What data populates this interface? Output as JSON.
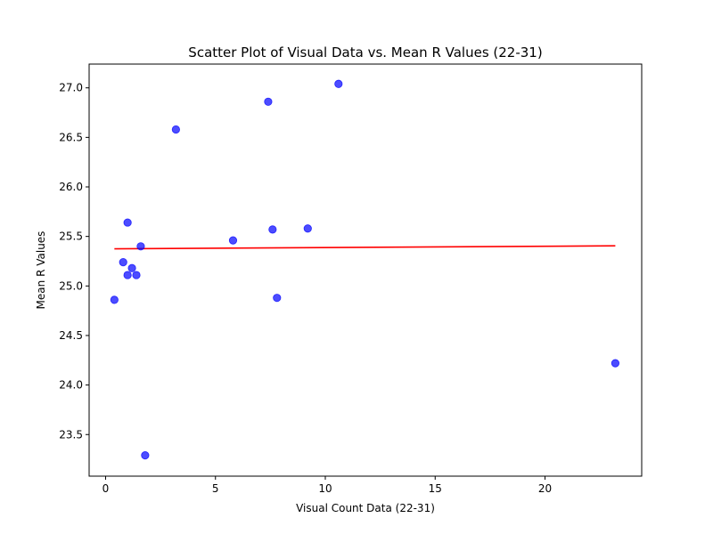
{
  "chart_data": {
    "type": "scatter",
    "title": "Scatter Plot of Visual Data vs. Mean R Values (22-31)",
    "xlabel": "Visual Count Data (22-31)",
    "ylabel": "Mean R Values",
    "xlim": [
      -0.75,
      24.4
    ],
    "ylim": [
      23.08,
      27.24
    ],
    "xticks": [
      0,
      5,
      10,
      15,
      20
    ],
    "xtick_labels": [
      "0",
      "5",
      "10",
      "15",
      "20"
    ],
    "yticks": [
      23.5,
      24.0,
      24.5,
      25.0,
      25.5,
      26.0,
      26.5,
      27.0
    ],
    "ytick_labels": [
      "23.5",
      "24.0",
      "24.5",
      "25.0",
      "25.5",
      "26.0",
      "26.5",
      "27.0"
    ],
    "grid": false,
    "point_color": "#0000ff",
    "line_color": "#ff0000",
    "series": [
      {
        "type": "scatter",
        "x": [
          0.4,
          0.8,
          1.0,
          1.0,
          1.2,
          1.4,
          1.6,
          1.8,
          3.2,
          5.8,
          7.4,
          7.6,
          7.8,
          9.2,
          10.6,
          23.2
        ],
        "y": [
          24.86,
          25.24,
          25.64,
          25.11,
          25.18,
          25.11,
          25.4,
          23.29,
          26.58,
          25.46,
          26.86,
          25.57,
          24.88,
          25.58,
          27.04,
          24.22
        ]
      },
      {
        "type": "line",
        "x": [
          0.4,
          23.2
        ],
        "y": [
          25.375,
          25.405
        ]
      }
    ]
  }
}
